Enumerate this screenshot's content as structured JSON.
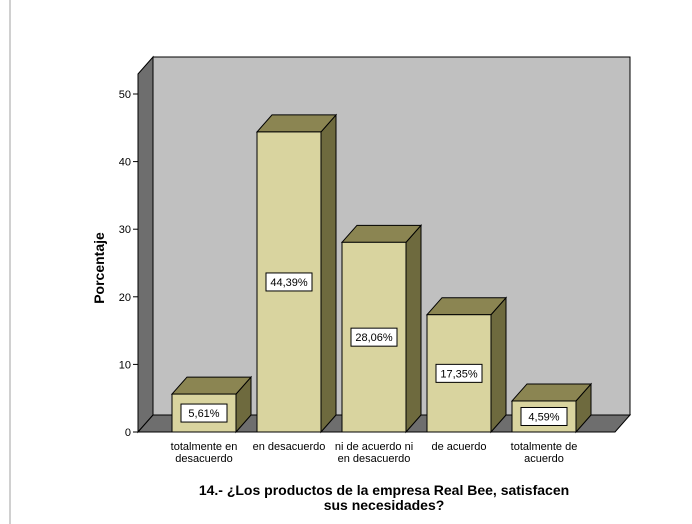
{
  "chart_data": {
    "type": "bar",
    "title_lines": [
      "14.- ¿Los productos de la empresa Real Bee, satisfacen",
      "sus necesidades?"
    ],
    "xlabel": "",
    "ylabel": "Porcentaje",
    "ylim": [
      0,
      50
    ],
    "yticks": [
      "0",
      "10",
      "20",
      "30",
      "40",
      "50"
    ],
    "grid": false,
    "categories": [
      [
        "totalmente en",
        "desacuerdo"
      ],
      [
        "en desacuerdo"
      ],
      [
        "ni de acuerdo ni",
        "en desacuerdo"
      ],
      [
        "de acuerdo"
      ],
      [
        "totalmente de",
        "acuerdo"
      ]
    ],
    "values": [
      5.61,
      44.39,
      28.06,
      17.35,
      4.59
    ],
    "data_labels": [
      "5,61%",
      "44,39%",
      "28,06%",
      "17,35%",
      "4,59%"
    ],
    "colors": {
      "bar_front": "#d9d49f",
      "bar_top": "#8b8552",
      "bar_side": "#6e6a3e",
      "bar_stroke": "#000000",
      "back_wall": "#c0c0c0",
      "side_wall": "#6e6e6e",
      "floor": "#6e6e6e"
    }
  }
}
